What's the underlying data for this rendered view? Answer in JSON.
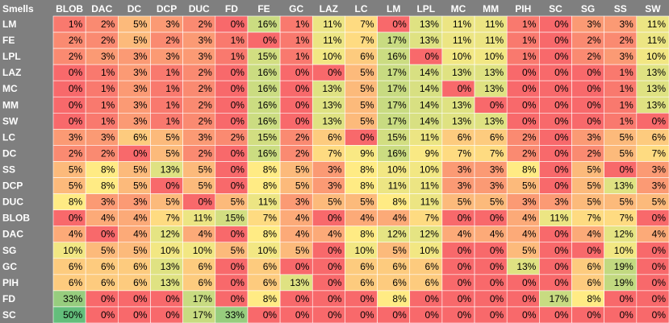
{
  "chart_data": {
    "type": "heatmap",
    "corner_label": "Smells",
    "columns": [
      "BLOB",
      "DAC",
      "DC",
      "DCP",
      "DUC",
      "FD",
      "FE",
      "GC",
      "LAZ",
      "LC",
      "LM",
      "LPL",
      "MC",
      "MM",
      "PIH",
      "SC",
      "SG",
      "SS",
      "SW"
    ],
    "rows": [
      "LM",
      "FE",
      "LPL",
      "LAZ",
      "MC",
      "MM",
      "SW",
      "LC",
      "DC",
      "SS",
      "DCP",
      "DUC",
      "BLOB",
      "DAC",
      "SG",
      "GC",
      "PIH",
      "FD",
      "SC"
    ],
    "unit": "%",
    "values": [
      [
        1,
        2,
        5,
        3,
        2,
        0,
        16,
        1,
        11,
        7,
        0,
        13,
        11,
        11,
        1,
        0,
        3,
        3,
        11
      ],
      [
        2,
        2,
        5,
        2,
        3,
        1,
        0,
        1,
        11,
        7,
        17,
        13,
        11,
        11,
        1,
        0,
        2,
        2,
        11
      ],
      [
        2,
        3,
        3,
        3,
        3,
        1,
        15,
        1,
        10,
        6,
        16,
        0,
        10,
        10,
        1,
        0,
        2,
        3,
        10
      ],
      [
        0,
        1,
        3,
        1,
        2,
        0,
        16,
        0,
        0,
        5,
        17,
        14,
        13,
        13,
        0,
        0,
        0,
        1,
        13
      ],
      [
        0,
        1,
        3,
        1,
        2,
        0,
        16,
        0,
        13,
        5,
        17,
        14,
        0,
        13,
        0,
        0,
        0,
        1,
        13
      ],
      [
        0,
        1,
        3,
        1,
        2,
        0,
        16,
        0,
        13,
        5,
        17,
        14,
        13,
        0,
        0,
        0,
        0,
        1,
        13
      ],
      [
        0,
        1,
        3,
        1,
        2,
        0,
        16,
        0,
        13,
        5,
        17,
        14,
        13,
        13,
        0,
        0,
        0,
        1,
        0
      ],
      [
        3,
        3,
        6,
        5,
        3,
        2,
        15,
        2,
        6,
        0,
        15,
        11,
        6,
        6,
        2,
        0,
        3,
        5,
        6
      ],
      [
        2,
        2,
        0,
        5,
        2,
        0,
        16,
        2,
        7,
        9,
        16,
        9,
        7,
        7,
        2,
        0,
        2,
        5,
        7
      ],
      [
        5,
        8,
        5,
        13,
        5,
        0,
        8,
        5,
        3,
        8,
        10,
        10,
        3,
        3,
        8,
        0,
        5,
        0,
        3
      ],
      [
        5,
        8,
        5,
        0,
        5,
        0,
        8,
        5,
        3,
        8,
        11,
        11,
        3,
        3,
        5,
        0,
        5,
        13,
        3
      ],
      [
        8,
        3,
        3,
        5,
        0,
        5,
        11,
        3,
        5,
        5,
        8,
        11,
        5,
        5,
        3,
        3,
        5,
        5,
        5
      ],
      [
        0,
        4,
        4,
        7,
        11,
        15,
        7,
        4,
        0,
        4,
        4,
        7,
        0,
        0,
        4,
        11,
        7,
        7,
        0
      ],
      [
        4,
        0,
        4,
        12,
        4,
        0,
        8,
        4,
        4,
        8,
        12,
        12,
        4,
        4,
        4,
        0,
        4,
        12,
        4
      ],
      [
        10,
        5,
        5,
        10,
        10,
        5,
        10,
        5,
        0,
        10,
        5,
        10,
        0,
        0,
        5,
        0,
        0,
        10,
        0
      ],
      [
        6,
        6,
        6,
        13,
        6,
        0,
        6,
        0,
        0,
        6,
        6,
        6,
        0,
        0,
        13,
        0,
        6,
        19,
        0
      ],
      [
        6,
        6,
        6,
        13,
        6,
        0,
        6,
        13,
        0,
        6,
        6,
        6,
        0,
        0,
        0,
        0,
        6,
        19,
        0
      ],
      [
        33,
        0,
        0,
        0,
        17,
        0,
        8,
        0,
        0,
        0,
        8,
        0,
        0,
        0,
        0,
        17,
        8,
        0,
        0
      ],
      [
        50,
        0,
        0,
        0,
        17,
        33,
        0,
        0,
        0,
        0,
        0,
        0,
        0,
        0,
        0,
        0,
        0,
        0,
        0
      ]
    ],
    "colors": {
      "header_bg": "#7f7f7f",
      "header_text": "#ffffff",
      "grid_line": "#ffffff",
      "cell_text": "#000000",
      "scale": [
        {
          "value": 0,
          "color": "#f8696b"
        },
        {
          "value": 8,
          "color": "#ffeb84"
        },
        {
          "value": 16,
          "color": "#cbdc81"
        },
        {
          "value": 50,
          "color": "#63be7b"
        }
      ]
    }
  }
}
